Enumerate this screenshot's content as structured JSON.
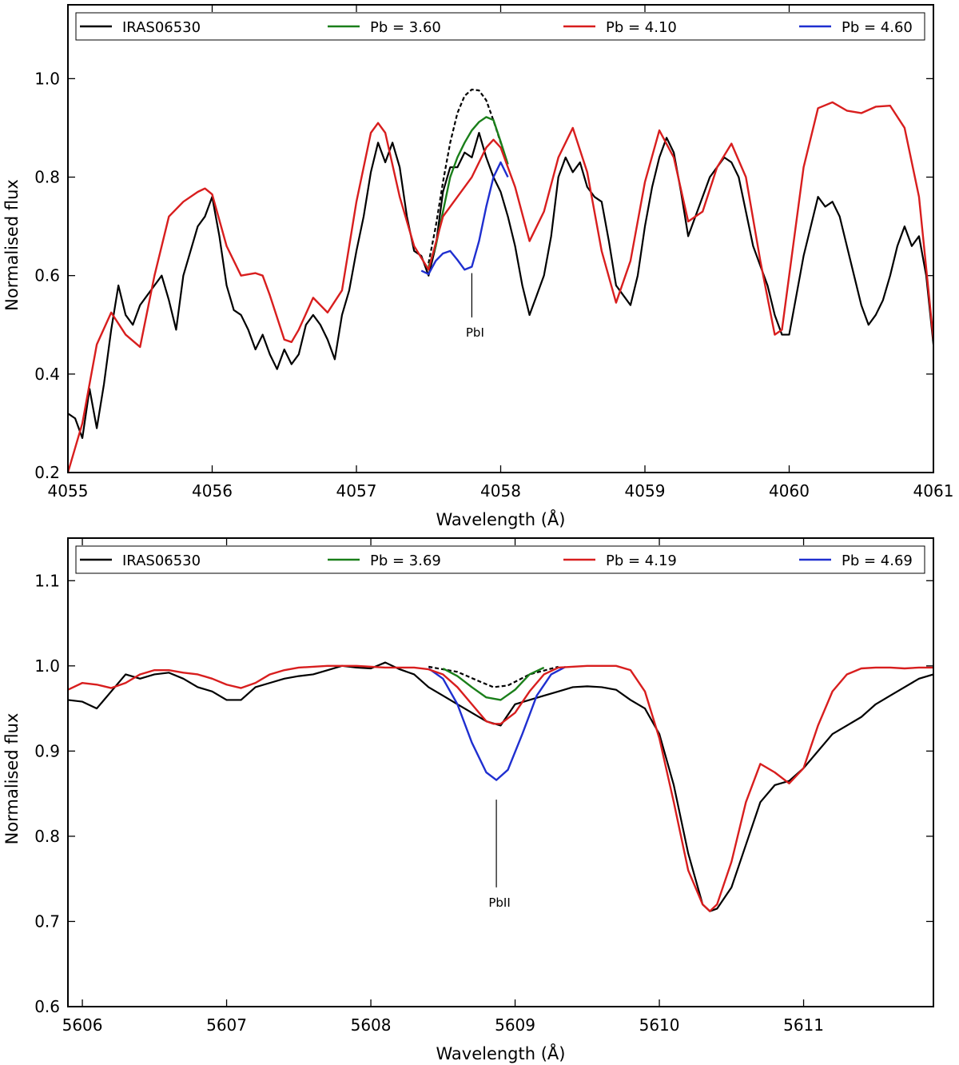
{
  "chart_data": [
    {
      "type": "line",
      "xlabel": "Wavelength (Å)",
      "ylabel": "Normalised flux",
      "xlim": [
        4055,
        4061
      ],
      "ylim": [
        0.2,
        1.15
      ],
      "xticks": [
        4055,
        4056,
        4057,
        4058,
        4059,
        4060,
        4061
      ],
      "xtick_labels": [
        "4055",
        "4056",
        "4057",
        "4058",
        "4059",
        "4060",
        "4061"
      ],
      "yticks": [
        0.2,
        0.4,
        0.6,
        0.8,
        1.0
      ],
      "ytick_labels": [
        "0.2",
        "0.4",
        "0.6",
        "0.8",
        "1.0"
      ],
      "legend_position": "top",
      "legend": [
        "IRAS06530",
        "Pb = 3.60",
        "Pb = 4.10",
        "Pb = 4.60"
      ],
      "annotation": {
        "text": "PbI",
        "x": 4057.8,
        "y_top": 0.605,
        "y_bottom": 0.515
      },
      "series": [
        {
          "name": "IRAS06530",
          "color": "#000000",
          "dash": "solid",
          "x": [
            4055.0,
            4055.05,
            4055.1,
            4055.15,
            4055.2,
            4055.25,
            4055.3,
            4055.35,
            4055.4,
            4055.45,
            4055.5,
            4055.55,
            4055.6,
            4055.65,
            4055.7,
            4055.75,
            4055.8,
            4055.85,
            4055.9,
            4055.95,
            4056.0,
            4056.05,
            4056.1,
            4056.15,
            4056.2,
            4056.25,
            4056.3,
            4056.35,
            4056.4,
            4056.45,
            4056.5,
            4056.55,
            4056.6,
            4056.65,
            4056.7,
            4056.75,
            4056.8,
            4056.85,
            4056.9,
            4056.95,
            4057.0,
            4057.05,
            4057.1,
            4057.15,
            4057.2,
            4057.25,
            4057.3,
            4057.35,
            4057.4,
            4057.45,
            4057.5,
            4057.55,
            4057.6,
            4057.65,
            4057.7,
            4057.75,
            4057.8,
            4057.85,
            4057.9,
            4057.95,
            4058.0,
            4058.05,
            4058.1,
            4058.15,
            4058.2,
            4058.25,
            4058.3,
            4058.35,
            4058.4,
            4058.45,
            4058.5,
            4058.55,
            4058.6,
            4058.65,
            4058.7,
            4058.75,
            4058.8,
            4058.85,
            4058.9,
            4058.95,
            4059.0,
            4059.05,
            4059.1,
            4059.15,
            4059.2,
            4059.25,
            4059.3,
            4059.35,
            4059.4,
            4059.45,
            4059.5,
            4059.55,
            4059.6,
            4059.65,
            4059.7,
            4059.75,
            4059.8,
            4059.85,
            4059.9,
            4059.95,
            4060.0,
            4060.05,
            4060.1,
            4060.15,
            4060.2,
            4060.25,
            4060.3,
            4060.35,
            4060.4,
            4060.45,
            4060.5,
            4060.55,
            4060.6,
            4060.65,
            4060.7,
            4060.75,
            4060.8,
            4060.85,
            4060.9,
            4060.95,
            4061.0
          ],
          "y": [
            0.32,
            0.31,
            0.27,
            0.37,
            0.29,
            0.38,
            0.49,
            0.58,
            0.52,
            0.5,
            0.54,
            0.56,
            0.58,
            0.6,
            0.55,
            0.49,
            0.6,
            0.65,
            0.7,
            0.72,
            0.76,
            0.68,
            0.58,
            0.53,
            0.52,
            0.49,
            0.45,
            0.48,
            0.44,
            0.41,
            0.45,
            0.42,
            0.44,
            0.5,
            0.52,
            0.5,
            0.47,
            0.43,
            0.52,
            0.57,
            0.65,
            0.72,
            0.81,
            0.87,
            0.83,
            0.87,
            0.82,
            0.72,
            0.65,
            0.64,
            0.6,
            0.66,
            0.77,
            0.82,
            0.82,
            0.85,
            0.84,
            0.89,
            0.84,
            0.8,
            0.77,
            0.72,
            0.66,
            0.58,
            0.52,
            0.56,
            0.6,
            0.68,
            0.8,
            0.84,
            0.81,
            0.83,
            0.78,
            0.76,
            0.75,
            0.67,
            0.58,
            0.56,
            0.54,
            0.6,
            0.7,
            0.78,
            0.84,
            0.88,
            0.85,
            0.77,
            0.68,
            0.72,
            0.76,
            0.8,
            0.82,
            0.84,
            0.83,
            0.8,
            0.73,
            0.66,
            0.62,
            0.58,
            0.52,
            0.48,
            0.48,
            0.56,
            0.64,
            0.7,
            0.76,
            0.74,
            0.75,
            0.72,
            0.66,
            0.6,
            0.54,
            0.5,
            0.52,
            0.55,
            0.6,
            0.66,
            0.7,
            0.66,
            0.68,
            0.6,
            0.46
          ]
        },
        {
          "name": "Pb = 3.60",
          "color": "#1a7f1a",
          "dash": "solid",
          "x": [
            4057.5,
            4057.55,
            4057.6,
            4057.65,
            4057.7,
            4057.75,
            4057.8,
            4057.85,
            4057.9,
            4057.95,
            4058.0,
            4058.05
          ],
          "y": [
            0.618,
            0.66,
            0.73,
            0.8,
            0.84,
            0.87,
            0.895,
            0.912,
            0.922,
            0.916,
            0.872,
            0.826
          ]
        },
        {
          "name": "Pb = 4.10",
          "color": "#d81e1e",
          "dash": "solid",
          "x": [
            4055.0,
            4055.1,
            4055.2,
            4055.3,
            4055.4,
            4055.5,
            4055.6,
            4055.7,
            4055.8,
            4055.9,
            4055.95,
            4056.0,
            4056.1,
            4056.2,
            4056.3,
            4056.35,
            4056.4,
            4056.5,
            4056.55,
            4056.6,
            4056.7,
            4056.8,
            4056.9,
            4057.0,
            4057.1,
            4057.15,
            4057.2,
            4057.3,
            4057.4,
            4057.5,
            4057.6,
            4057.7,
            4057.8,
            4057.9,
            4057.95,
            4058.0,
            4058.1,
            4058.2,
            4058.3,
            4058.4,
            4058.5,
            4058.6,
            4058.7,
            4058.8,
            4058.9,
            4059.0,
            4059.1,
            4059.2,
            4059.3,
            4059.4,
            4059.5,
            4059.6,
            4059.7,
            4059.8,
            4059.9,
            4059.95,
            4060.0,
            4060.1,
            4060.2,
            4060.3,
            4060.4,
            4060.5,
            4060.6,
            4060.7,
            4060.8,
            4060.9,
            4061.0
          ],
          "y": [
            0.2,
            0.3,
            0.46,
            0.525,
            0.48,
            0.455,
            0.6,
            0.72,
            0.75,
            0.77,
            0.777,
            0.765,
            0.66,
            0.6,
            0.605,
            0.6,
            0.56,
            0.47,
            0.465,
            0.49,
            0.555,
            0.525,
            0.57,
            0.75,
            0.89,
            0.91,
            0.89,
            0.76,
            0.66,
            0.612,
            0.72,
            0.76,
            0.8,
            0.86,
            0.876,
            0.86,
            0.78,
            0.67,
            0.73,
            0.84,
            0.9,
            0.81,
            0.65,
            0.545,
            0.63,
            0.79,
            0.895,
            0.84,
            0.71,
            0.73,
            0.82,
            0.868,
            0.8,
            0.63,
            0.48,
            0.49,
            0.6,
            0.82,
            0.94,
            0.952,
            0.935,
            0.93,
            0.943,
            0.945,
            0.9,
            0.76,
            0.47
          ]
        },
        {
          "name": "Pb = 4.60",
          "color": "#1f2fd0",
          "dash": "solid",
          "x": [
            4057.45,
            4057.5,
            4057.55,
            4057.6,
            4057.65,
            4057.7,
            4057.75,
            4057.8,
            4057.85,
            4057.9,
            4057.95,
            4058.0,
            4058.05
          ],
          "y": [
            0.61,
            0.603,
            0.63,
            0.645,
            0.65,
            0.632,
            0.612,
            0.618,
            0.67,
            0.74,
            0.8,
            0.83,
            0.8
          ]
        },
        {
          "name": "",
          "color": "#000000",
          "dash": "dotted",
          "x": [
            4057.5,
            4057.55,
            4057.6,
            4057.65,
            4057.7,
            4057.75,
            4057.8,
            4057.85,
            4057.9,
            4057.95,
            4058.0,
            4058.05
          ],
          "y": [
            0.625,
            0.7,
            0.79,
            0.87,
            0.93,
            0.965,
            0.978,
            0.976,
            0.956,
            0.915,
            0.87,
            0.826
          ]
        }
      ]
    },
    {
      "type": "line",
      "xlabel": "Wavelength (Å)",
      "ylabel": "Normalised flux",
      "xlim": [
        5605.9,
        5611.9
      ],
      "ylim": [
        0.6,
        1.15
      ],
      "xticks": [
        5606,
        5607,
        5608,
        5609,
        5610,
        5611
      ],
      "xtick_labels": [
        "5606",
        "5607",
        "5608",
        "5609",
        "5610",
        "5611"
      ],
      "yticks": [
        0.6,
        0.7,
        0.8,
        0.9,
        1.0,
        1.1
      ],
      "ytick_labels": [
        "0.6",
        "0.7",
        "0.8",
        "0.9",
        "1.0",
        "1.1"
      ],
      "legend_position": "top",
      "legend": [
        "IRAS06530",
        "Pb = 3.69",
        "Pb = 4.19",
        "Pb = 4.69"
      ],
      "annotation": {
        "text": "PbII",
        "x": 5608.87,
        "y_top": 0.843,
        "y_bottom": 0.74
      },
      "series": [
        {
          "name": "IRAS06530",
          "color": "#000000",
          "dash": "solid",
          "x": [
            5605.9,
            5606.0,
            5606.1,
            5606.2,
            5606.3,
            5606.4,
            5606.5,
            5606.6,
            5606.7,
            5606.8,
            5606.9,
            5607.0,
            5607.1,
            5607.2,
            5607.3,
            5607.4,
            5607.5,
            5607.6,
            5607.7,
            5607.8,
            5607.9,
            5608.0,
            5608.1,
            5608.2,
            5608.3,
            5608.4,
            5608.5,
            5608.6,
            5608.7,
            5608.8,
            5608.9,
            5609.0,
            5609.1,
            5609.2,
            5609.3,
            5609.4,
            5609.5,
            5609.6,
            5609.7,
            5609.8,
            5609.9,
            5610.0,
            5610.1,
            5610.2,
            5610.3,
            5610.35,
            5610.4,
            5610.5,
            5610.6,
            5610.7,
            5610.8,
            5610.9,
            5611.0,
            5611.1,
            5611.2,
            5611.3,
            5611.4,
            5611.5,
            5611.6,
            5611.7,
            5611.8,
            5611.9
          ],
          "y": [
            0.96,
            0.958,
            0.95,
            0.97,
            0.99,
            0.985,
            0.99,
            0.992,
            0.985,
            0.975,
            0.97,
            0.96,
            0.96,
            0.975,
            0.98,
            0.985,
            0.988,
            0.99,
            0.995,
            1.0,
            0.998,
            0.997,
            1.004,
            0.996,
            0.99,
            0.975,
            0.965,
            0.955,
            0.945,
            0.935,
            0.93,
            0.955,
            0.96,
            0.965,
            0.97,
            0.975,
            0.976,
            0.975,
            0.972,
            0.96,
            0.95,
            0.92,
            0.86,
            0.78,
            0.72,
            0.712,
            0.715,
            0.74,
            0.79,
            0.84,
            0.86,
            0.865,
            0.88,
            0.9,
            0.92,
            0.93,
            0.94,
            0.955,
            0.965,
            0.975,
            0.985,
            0.99
          ]
        },
        {
          "name": "Pb = 3.69",
          "color": "#1a7f1a",
          "dash": "solid",
          "x": [
            5608.5,
            5608.6,
            5608.7,
            5608.8,
            5608.9,
            5609.0,
            5609.1,
            5609.2
          ],
          "y": [
            0.997,
            0.988,
            0.975,
            0.963,
            0.96,
            0.972,
            0.99,
            0.998
          ]
        },
        {
          "name": "Pb = 4.19",
          "color": "#d81e1e",
          "dash": "solid",
          "x": [
            5605.9,
            5606.0,
            5606.1,
            5606.2,
            5606.3,
            5606.4,
            5606.5,
            5606.6,
            5606.7,
            5606.8,
            5606.9,
            5607.0,
            5607.1,
            5607.2,
            5607.3,
            5607.4,
            5607.5,
            5607.7,
            5607.9,
            5608.1,
            5608.3,
            5608.4,
            5608.5,
            5608.6,
            5608.7,
            5608.8,
            5608.85,
            5608.9,
            5609.0,
            5609.1,
            5609.2,
            5609.3,
            5609.5,
            5609.7,
            5609.8,
            5609.9,
            5610.0,
            5610.1,
            5610.2,
            5610.3,
            5610.35,
            5610.4,
            5610.5,
            5610.6,
            5610.7,
            5610.8,
            5610.9,
            5611.0,
            5611.1,
            5611.2,
            5611.3,
            5611.4,
            5611.5,
            5611.6,
            5611.7,
            5611.8,
            5611.9
          ],
          "y": [
            0.972,
            0.98,
            0.978,
            0.974,
            0.98,
            0.99,
            0.995,
            0.995,
            0.992,
            0.99,
            0.985,
            0.978,
            0.974,
            0.98,
            0.99,
            0.995,
            0.998,
            1.0,
            1.0,
            0.998,
            0.998,
            0.996,
            0.99,
            0.975,
            0.955,
            0.935,
            0.932,
            0.932,
            0.945,
            0.97,
            0.99,
            0.998,
            1.0,
            1.0,
            0.995,
            0.97,
            0.915,
            0.84,
            0.76,
            0.72,
            0.712,
            0.72,
            0.77,
            0.84,
            0.885,
            0.875,
            0.862,
            0.88,
            0.93,
            0.97,
            0.99,
            0.997,
            0.998,
            0.998,
            0.997,
            0.998,
            0.998
          ]
        },
        {
          "name": "Pb = 4.69",
          "color": "#1f2fd0",
          "dash": "solid",
          "x": [
            5608.4,
            5608.5,
            5608.6,
            5608.7,
            5608.8,
            5608.87,
            5608.95,
            5609.05,
            5609.15,
            5609.25,
            5609.35
          ],
          "y": [
            0.997,
            0.985,
            0.955,
            0.91,
            0.875,
            0.866,
            0.878,
            0.92,
            0.965,
            0.99,
            0.999
          ]
        },
        {
          "name": "",
          "color": "#000000",
          "dash": "dotted",
          "x": [
            5608.4,
            5608.6,
            5608.75,
            5608.85,
            5608.95,
            5609.1,
            5609.3
          ],
          "y": [
            0.999,
            0.993,
            0.982,
            0.975,
            0.977,
            0.99,
            0.999
          ]
        }
      ]
    }
  ]
}
